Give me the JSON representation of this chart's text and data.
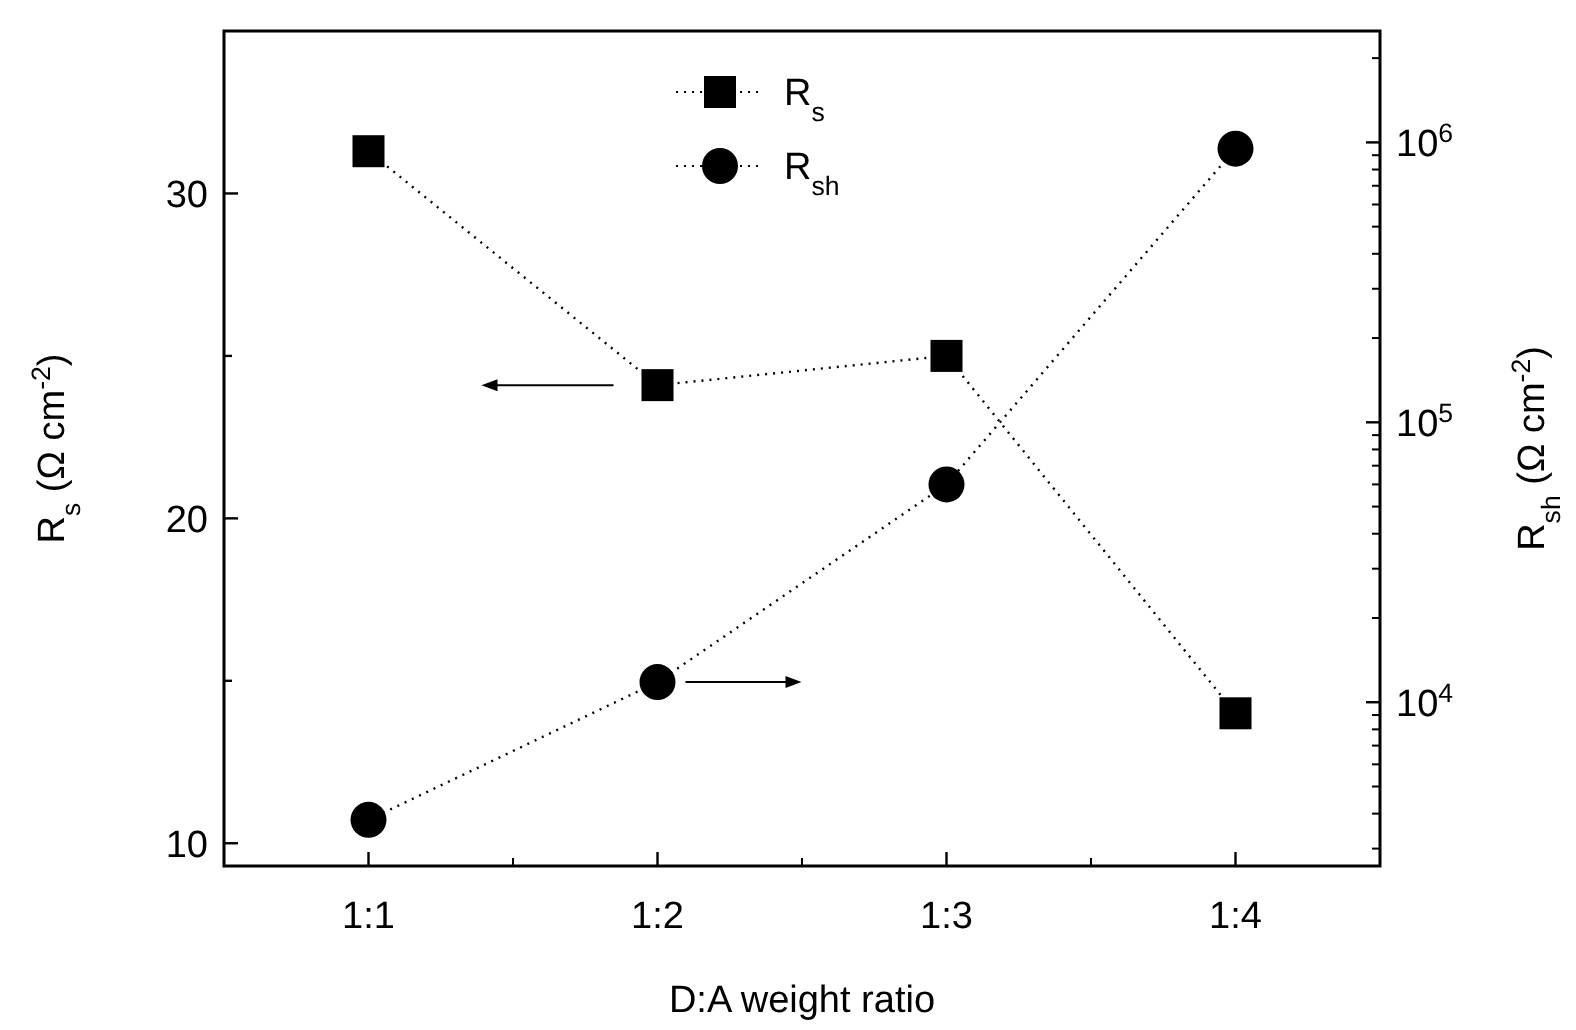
{
  "chart_data": {
    "type": "line",
    "xlabel": "D:A weight ratio",
    "ylabel": "R$_{s}$ (Ω cm$^{-2}$)",
    "y2label": "R$_{sh}$ (Ω cm$^{-2}$)",
    "categories": [
      "1:1",
      "1:2",
      "1:3",
      "1:4"
    ],
    "series": [
      {
        "name": "R$_{s}$",
        "color": "#000000",
        "marker": "square",
        "line_style": "dotted",
        "values": [
          31.3,
          24.1,
          25.0,
          14.0
        ]
      },
      {
        "name": "R$_{sh}$",
        "color": "#000000",
        "marker": "circle",
        "line_style": "dotted",
        "axis": "y2",
        "values": [
          3800,
          11800,
          60000,
          950000
        ]
      }
    ],
    "ylim": [
      9.3,
      35
    ],
    "yticks": [
      10,
      {
        "value": 15,
        "label": null
      },
      20,
      {
        "value": 25,
        "label": null
      },
      30
    ],
    "y2lim": [
      2600,
      2500000
    ],
    "y2ticks": [
      {
        "value": 10000,
        "label": "10$^{4}$"
      },
      {
        "value": 100000,
        "label": "10$^{5}$"
      },
      {
        "value": 1000000,
        "label": "10$^{6}$"
      }
    ],
    "log": "y2",
    "legend": "top"
  }
}
